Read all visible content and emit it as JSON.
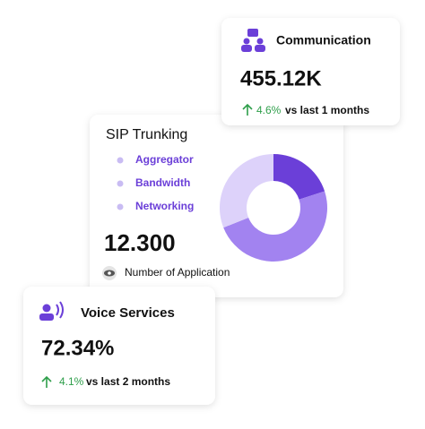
{
  "communication": {
    "title": "Communication",
    "value": "455.12K",
    "change": "4.6%",
    "period": "vs last 1 months"
  },
  "sip_trunking": {
    "title": "SIP Trunking",
    "legend": [
      "Aggregator",
      "Bandwidth",
      "Networking"
    ],
    "value": "12.300",
    "caption": "Number of Application",
    "chart_data": {
      "type": "donut",
      "values": [
        20,
        49,
        31
      ],
      "colors": [
        "#6b3fd8",
        "#a283f0",
        "#ddd2fa"
      ]
    }
  },
  "voice_services": {
    "title": "Voice Services",
    "value": "72.34%",
    "change": "4.1%",
    "period": "vs last 2 months"
  }
}
